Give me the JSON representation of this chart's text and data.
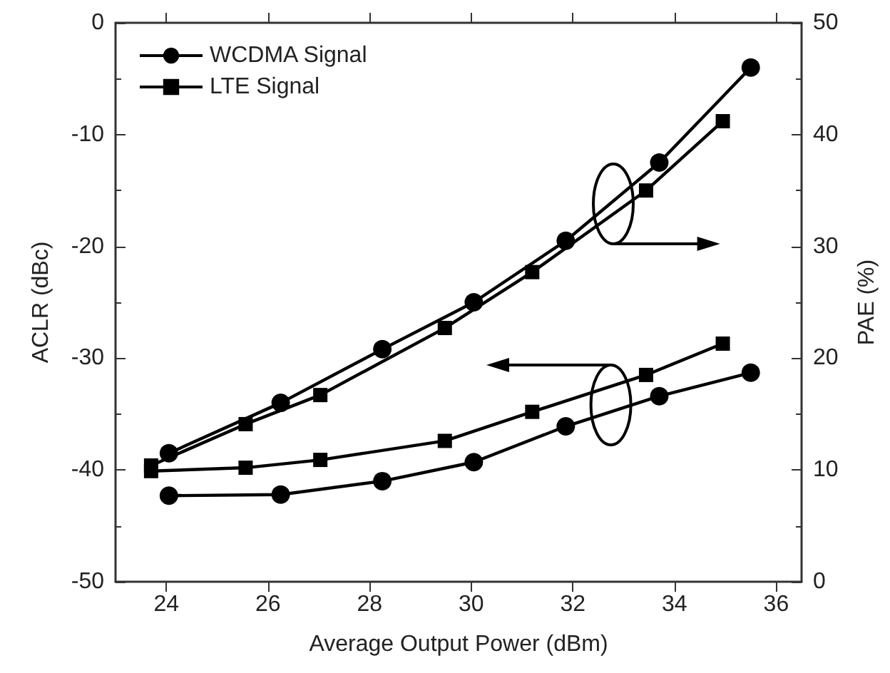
{
  "chart_data": {
    "type": "line",
    "xlabel": "Average Output Power (dBm)",
    "ylabel": "ACLR (dBc)",
    "y2label": "PAE (%)",
    "xlim": [
      23,
      36.5
    ],
    "xticks": [
      24,
      26,
      28,
      30,
      32,
      34,
      36
    ],
    "ylim": [
      -50,
      0
    ],
    "yticks": [
      -50,
      -40,
      -30,
      -20,
      -10,
      0
    ],
    "y2lim": [
      0,
      50
    ],
    "y2ticks": [
      0,
      10,
      20,
      30,
      40,
      50
    ],
    "legend": "top left",
    "grid": false,
    "line_style": "solid",
    "series": [
      {
        "name": "WCDMA Signal",
        "color": "#000000",
        "marker": "circle",
        "x": [
          24.05,
          26.25,
          28.25,
          30.05,
          31.86,
          33.7,
          35.5
        ],
        "values": [
          -42.3,
          -42.2,
          -41.0,
          -39.3,
          -36.1,
          -33.4,
          -31.3
        ]
      },
      {
        "name": "LTE Signal",
        "color": "#000000",
        "marker": "square",
        "x": [
          23.7,
          25.56,
          27.03,
          29.48,
          31.2,
          33.44,
          34.95
        ],
        "values": [
          -40.1,
          -39.8,
          -39.1,
          -37.4,
          -34.8,
          -31.5,
          -28.7
        ]
      },
      {
        "color": "#000000",
        "marker": "circle",
        "axis": "y2",
        "x": [
          24.05,
          26.25,
          28.25,
          30.05,
          31.86,
          33.7,
          35.5
        ],
        "values": [
          11.5,
          16.0,
          20.8,
          25.0,
          30.5,
          37.5,
          46.0
        ]
      },
      {
        "color": "#000000",
        "marker": "square",
        "axis": "y2",
        "x": [
          23.7,
          25.56,
          27.03,
          29.48,
          31.2,
          33.44,
          34.95
        ],
        "values": [
          10.4,
          14.1,
          16.7,
          22.7,
          27.7,
          35.0,
          41.2
        ]
      }
    ]
  }
}
